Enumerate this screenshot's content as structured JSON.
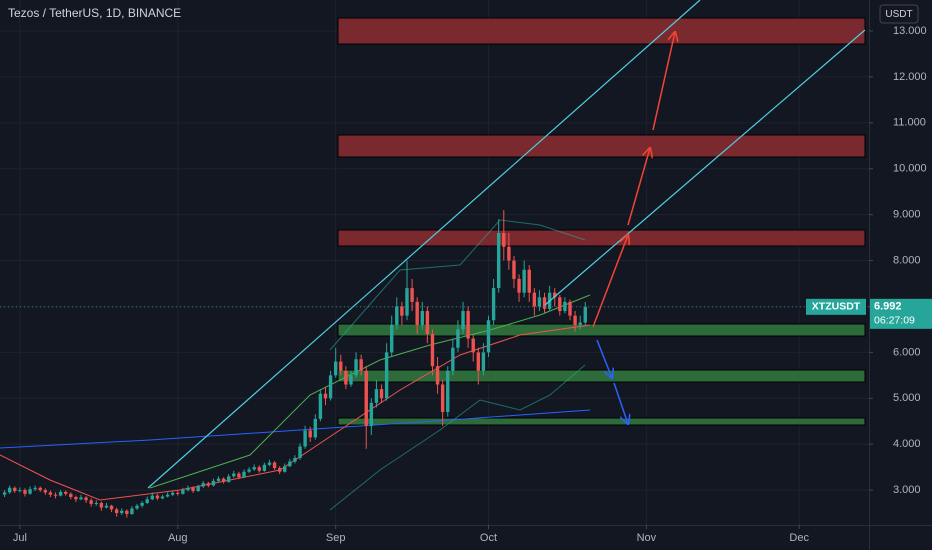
{
  "header": {
    "symbol": "Tezos / TetherUS, 1D, BINANCE",
    "currency": "USDT"
  },
  "chart_data": {
    "type": "candlestick",
    "x": [
      -3,
      -2,
      -1,
      0,
      1,
      2,
      3,
      4,
      5,
      6,
      7,
      8,
      9,
      10,
      11,
      12,
      13,
      14,
      15,
      16,
      17,
      18,
      19,
      20,
      21,
      22,
      23,
      24,
      25,
      26,
      27,
      28,
      29,
      30,
      31,
      32,
      33,
      34,
      35,
      36,
      37,
      38,
      39,
      40,
      41,
      42,
      43,
      44,
      45,
      46,
      47,
      48,
      49,
      50,
      51,
      52,
      53,
      54,
      55,
      56,
      57,
      58,
      59,
      60,
      61,
      62,
      63,
      64,
      65,
      66,
      67,
      68,
      69,
      70,
      71,
      72,
      73,
      74,
      75,
      76,
      77,
      78,
      79,
      80,
      81,
      82,
      83,
      84,
      85,
      86,
      87,
      88,
      89,
      90,
      91,
      92,
      93,
      94,
      95,
      96,
      97,
      98,
      99,
      100,
      101,
      102,
      103,
      104,
      105,
      106,
      107,
      108,
      109,
      110,
      111
    ],
    "ohlc": [
      [
        2.9,
        3.0,
        2.85,
        2.95
      ],
      [
        2.95,
        3.1,
        2.92,
        3.05
      ],
      [
        3.05,
        3.08,
        2.94,
        2.98
      ],
      [
        2.98,
        3.06,
        2.95,
        3.0
      ],
      [
        3.0,
        3.04,
        2.86,
        2.92
      ],
      [
        2.92,
        3.08,
        2.9,
        3.02
      ],
      [
        3.02,
        3.1,
        2.98,
        3.05
      ],
      [
        3.05,
        3.08,
        2.96,
        3.0
      ],
      [
        3.0,
        3.04,
        2.9,
        2.95
      ],
      [
        2.95,
        2.99,
        2.85,
        2.9
      ],
      [
        2.9,
        2.95,
        2.82,
        2.88
      ],
      [
        2.88,
        3.0,
        2.86,
        2.96
      ],
      [
        2.96,
        2.99,
        2.88,
        2.92
      ],
      [
        2.92,
        2.95,
        2.8,
        2.85
      ],
      [
        2.85,
        2.88,
        2.74,
        2.8
      ],
      [
        2.8,
        2.9,
        2.78,
        2.84
      ],
      [
        2.84,
        2.87,
        2.72,
        2.78
      ],
      [
        2.78,
        2.82,
        2.64,
        2.7
      ],
      [
        2.7,
        2.78,
        2.66,
        2.72
      ],
      [
        2.72,
        2.75,
        2.55,
        2.62
      ],
      [
        2.62,
        2.72,
        2.6,
        2.66
      ],
      [
        2.66,
        2.68,
        2.52,
        2.58
      ],
      [
        2.58,
        2.62,
        2.42,
        2.5
      ],
      [
        2.5,
        2.6,
        2.46,
        2.55
      ],
      [
        2.55,
        2.58,
        2.4,
        2.48
      ],
      [
        2.48,
        2.65,
        2.46,
        2.6
      ],
      [
        2.6,
        2.7,
        2.57,
        2.66
      ],
      [
        2.66,
        2.76,
        2.62,
        2.72
      ],
      [
        2.72,
        2.86,
        2.7,
        2.8
      ],
      [
        2.8,
        2.95,
        2.78,
        2.88
      ],
      [
        2.88,
        2.92,
        2.78,
        2.82
      ],
      [
        2.82,
        2.9,
        2.8,
        2.86
      ],
      [
        2.86,
        2.95,
        2.84,
        2.9
      ],
      [
        2.9,
        2.98,
        2.87,
        2.94
      ],
      [
        2.94,
        2.98,
        2.88,
        2.92
      ],
      [
        2.92,
        3.05,
        2.9,
        3.0
      ],
      [
        3.0,
        3.1,
        2.97,
        3.05
      ],
      [
        3.05,
        3.08,
        2.94,
        2.98
      ],
      [
        2.98,
        3.12,
        2.96,
        3.08
      ],
      [
        3.08,
        3.2,
        3.05,
        3.15
      ],
      [
        3.15,
        3.18,
        3.06,
        3.1
      ],
      [
        3.1,
        3.25,
        3.08,
        3.2
      ],
      [
        3.2,
        3.3,
        3.17,
        3.25
      ],
      [
        3.25,
        3.28,
        3.14,
        3.18
      ],
      [
        3.18,
        3.35,
        3.16,
        3.3
      ],
      [
        3.3,
        3.42,
        3.27,
        3.36
      ],
      [
        3.36,
        3.4,
        3.24,
        3.28
      ],
      [
        3.28,
        3.45,
        3.26,
        3.4
      ],
      [
        3.4,
        3.5,
        3.37,
        3.45
      ],
      [
        3.45,
        3.56,
        3.42,
        3.5
      ],
      [
        3.5,
        3.54,
        3.38,
        3.42
      ],
      [
        3.42,
        3.6,
        3.4,
        3.55
      ],
      [
        3.55,
        3.66,
        3.52,
        3.6
      ],
      [
        3.6,
        3.63,
        3.44,
        3.48
      ],
      [
        3.48,
        3.52,
        3.35,
        3.4
      ],
      [
        3.4,
        3.58,
        3.38,
        3.52
      ],
      [
        3.52,
        3.68,
        3.5,
        3.62
      ],
      [
        3.62,
        3.76,
        3.58,
        3.7
      ],
      [
        3.7,
        4.02,
        3.66,
        3.95
      ],
      [
        3.95,
        4.4,
        3.9,
        4.3
      ],
      [
        4.3,
        4.38,
        4.05,
        4.15
      ],
      [
        4.15,
        4.65,
        4.1,
        4.55
      ],
      [
        4.55,
        5.2,
        4.5,
        5.1
      ],
      [
        5.1,
        5.25,
        4.85,
        5.0
      ],
      [
        5.0,
        5.6,
        4.95,
        5.5
      ],
      [
        5.5,
        6.1,
        5.45,
        5.8
      ],
      [
        5.8,
        5.95,
        5.5,
        5.6
      ],
      [
        5.6,
        5.7,
        5.2,
        5.3
      ],
      [
        5.3,
        5.6,
        5.25,
        5.5
      ],
      [
        5.5,
        6.0,
        5.45,
        5.85
      ],
      [
        5.85,
        5.95,
        5.5,
        5.6
      ],
      [
        5.6,
        5.7,
        3.9,
        4.4
      ],
      [
        4.4,
        5.0,
        4.2,
        4.9
      ],
      [
        4.9,
        5.4,
        4.8,
        5.2
      ],
      [
        5.2,
        5.3,
        4.9,
        5.0
      ],
      [
        5.0,
        6.2,
        4.95,
        6.0
      ],
      [
        6.0,
        6.8,
        5.9,
        6.6
      ],
      [
        6.6,
        7.2,
        6.5,
        7.0
      ],
      [
        7.0,
        7.1,
        6.6,
        6.8
      ],
      [
        6.8,
        8.0,
        6.7,
        7.4
      ],
      [
        7.4,
        7.6,
        6.9,
        7.1
      ],
      [
        7.1,
        7.2,
        6.4,
        6.6
      ],
      [
        6.6,
        7.1,
        6.5,
        6.9
      ],
      [
        6.9,
        7.0,
        6.2,
        6.4
      ],
      [
        6.4,
        6.5,
        5.5,
        5.7
      ],
      [
        5.7,
        5.9,
        5.1,
        5.3
      ],
      [
        5.3,
        5.4,
        4.4,
        4.7
      ],
      [
        4.7,
        5.7,
        4.6,
        5.6
      ],
      [
        5.6,
        6.3,
        5.5,
        6.1
      ],
      [
        6.1,
        6.7,
        6.0,
        6.5
      ],
      [
        6.5,
        7.1,
        6.4,
        6.9
      ],
      [
        6.9,
        7.0,
        6.1,
        6.3
      ],
      [
        6.3,
        6.4,
        5.8,
        6.0
      ],
      [
        6.0,
        6.1,
        5.3,
        5.6
      ],
      [
        5.6,
        6.2,
        5.5,
        6.0
      ],
      [
        6.0,
        6.8,
        5.9,
        6.7
      ],
      [
        6.7,
        7.6,
        6.6,
        7.4
      ],
      [
        7.4,
        8.9,
        7.3,
        8.6
      ],
      [
        8.6,
        9.1,
        8.0,
        8.3
      ],
      [
        8.3,
        8.6,
        7.8,
        8.0
      ],
      [
        8.0,
        8.1,
        7.4,
        7.6
      ],
      [
        7.6,
        7.7,
        7.1,
        7.3
      ],
      [
        7.3,
        8.0,
        7.2,
        7.8
      ],
      [
        7.8,
        7.9,
        7.1,
        7.3
      ],
      [
        7.3,
        7.4,
        6.8,
        7.0
      ],
      [
        7.0,
        7.35,
        6.9,
        7.2
      ],
      [
        7.2,
        7.3,
        6.85,
        6.95
      ],
      [
        6.95,
        7.45,
        6.9,
        7.3
      ],
      [
        7.3,
        7.4,
        7.0,
        7.2
      ],
      [
        7.2,
        7.25,
        6.8,
        6.9
      ],
      [
        6.9,
        7.2,
        6.85,
        7.1
      ],
      [
        7.1,
        7.15,
        6.7,
        6.8
      ],
      [
        6.8,
        6.9,
        6.45,
        6.6
      ],
      [
        6.6,
        6.8,
        6.5,
        6.65
      ],
      [
        6.65,
        7.1,
        6.6,
        6.992
      ]
    ],
    "up_color": "#26a69a",
    "down_color": "#ef5350",
    "xlim": [
      -3.9,
      166.7
    ],
    "ylim": [
      2.24,
      13.675
    ],
    "yticks": [
      {
        "value": 3,
        "label": "3.000"
      },
      {
        "value": 4,
        "label": "4.000"
      },
      {
        "value": 5,
        "label": "5.000"
      },
      {
        "value": 6,
        "label": "6.000"
      },
      {
        "value": 7,
        "label": "7.000"
      },
      {
        "value": 8,
        "label": "8.000"
      },
      {
        "value": 9,
        "label": "9.000"
      },
      {
        "value": 10,
        "label": "10.000"
      },
      {
        "value": 11,
        "label": "11.000"
      },
      {
        "value": 12,
        "label": "12.000"
      },
      {
        "value": 13,
        "label": "13.000"
      }
    ],
    "xticks": [
      {
        "value": 0,
        "label": "Jul"
      },
      {
        "value": 31,
        "label": "Aug"
      },
      {
        "value": 62,
        "label": "Sep"
      },
      {
        "value": 92,
        "label": "Oct"
      },
      {
        "value": 123,
        "label": "Nov"
      },
      {
        "value": 153,
        "label": "Dec"
      }
    ],
    "grid": true,
    "last_price": {
      "name": "XTZUSDT",
      "value": 6.992,
      "countdown": "06:27:09"
    }
  }
}
